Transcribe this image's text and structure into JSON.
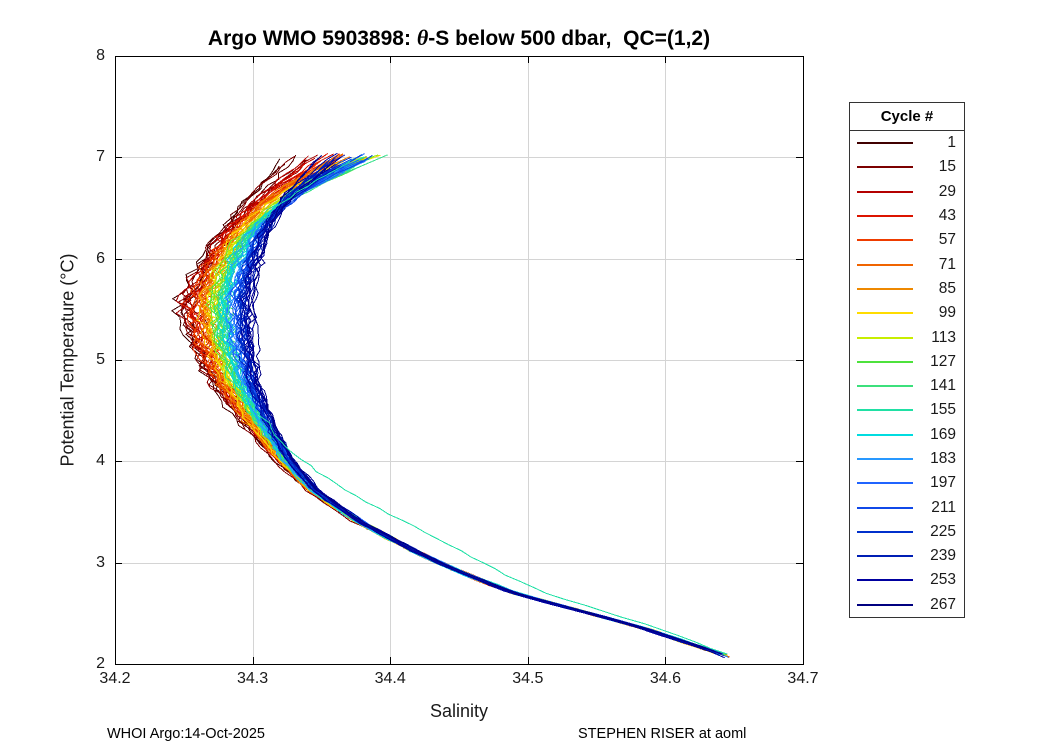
{
  "title": {
    "prefix": "Argo WMO 5903898: ",
    "theta": "θ",
    "suffix": "-S below 500 dbar,  QC=(1,2)"
  },
  "footer": {
    "left": "WHOI Argo:14-Oct-2025",
    "right": "STEPHEN RISER at aoml"
  },
  "legend": {
    "title": "Cycle #",
    "cycles": [
      1,
      15,
      29,
      43,
      57,
      71,
      85,
      99,
      113,
      127,
      141,
      155,
      169,
      183,
      197,
      211,
      225,
      239,
      253,
      267
    ]
  },
  "chart_data": {
    "type": "line",
    "title": "Argo WMO 5903898: θ-S below 500 dbar,  QC=(1,2)",
    "xlabel": "Salinity",
    "ylabel": "Potential Temperature (°C)",
    "xlim": [
      34.2,
      34.7
    ],
    "ylim": [
      2,
      8
    ],
    "xticks": [
      34.2,
      34.3,
      34.4,
      34.5,
      34.6,
      34.7
    ],
    "xtick_labels": [
      "34.2",
      "34.3",
      "34.4",
      "34.5",
      "34.6",
      "34.7"
    ],
    "yticks": [
      2,
      3,
      4,
      5,
      6,
      7,
      8
    ],
    "ytick_labels": [
      "2",
      "3",
      "4",
      "5",
      "6",
      "7",
      "8"
    ],
    "grid": true,
    "grid_color": "#d4d4d4",
    "axis_color": "#000000",
    "legend_title": "Cycle #",
    "legend_position": "outside-right",
    "legend_cycles": [
      1,
      15,
      29,
      43,
      57,
      71,
      85,
      99,
      113,
      127,
      141,
      155,
      169,
      183,
      197,
      211,
      225,
      239,
      253,
      267
    ],
    "cycle_range": {
      "first": 1,
      "last": 267,
      "draw_step": 3
    },
    "colormap_stops": [
      [
        0.0,
        "#400000"
      ],
      [
        0.053,
        "#7c0000"
      ],
      [
        0.105,
        "#b40000"
      ],
      [
        0.158,
        "#dc1400"
      ],
      [
        0.211,
        "#ee3c00"
      ],
      [
        0.263,
        "#f06400"
      ],
      [
        0.316,
        "#ee8800"
      ],
      [
        0.368,
        "#ffdc00"
      ],
      [
        0.421,
        "#c8ee00"
      ],
      [
        0.474,
        "#4ce23c"
      ],
      [
        0.526,
        "#3ce07c"
      ],
      [
        0.579,
        "#20e0a4"
      ],
      [
        0.632,
        "#00dce0"
      ],
      [
        0.684,
        "#2898ff"
      ],
      [
        0.737,
        "#2064ff"
      ],
      [
        0.789,
        "#1048e8"
      ],
      [
        0.842,
        "#0030cc"
      ],
      [
        0.895,
        "#001eb4"
      ],
      [
        0.947,
        "#0000a0"
      ],
      [
        1.0,
        "#000080"
      ]
    ],
    "base_profile": {
      "theta": [
        7.05,
        7.0,
        6.6,
        6.2,
        5.9,
        5.6,
        5.2,
        4.8,
        4.4,
        4.0,
        3.7,
        3.4,
        3.1,
        2.9,
        2.7,
        2.5,
        2.35,
        2.2,
        2.1,
        2.05
      ],
      "salinity": [
        34.35,
        34.345,
        34.315,
        34.296,
        34.287,
        34.281,
        34.283,
        34.291,
        34.306,
        34.325,
        34.346,
        34.378,
        34.42,
        34.452,
        34.49,
        34.545,
        34.585,
        34.618,
        34.64,
        34.648
      ]
    },
    "model": {
      "seed": 1234567,
      "theta_step": 0.06,
      "bulge_center": 5.5,
      "bulge_sigma": 1.2,
      "bulge_amp_start": -0.03,
      "bulge_amp_end": 0.018,
      "top_amp_sin": 0.048,
      "top_amp_lin": 0.018,
      "top_amp_off": -0.012,
      "top_fan_rand": 0.02,
      "wiggle_base": 0.0025,
      "wiggle_warm_extra": 0.006,
      "noise_base": 0.001,
      "noise_bulge": 0.0035,
      "curve_shift_rand": 0.006,
      "outlier": {
        "t": 0.58,
        "amp": 0.035,
        "center": 3.2,
        "sigma": 0.8
      }
    }
  }
}
